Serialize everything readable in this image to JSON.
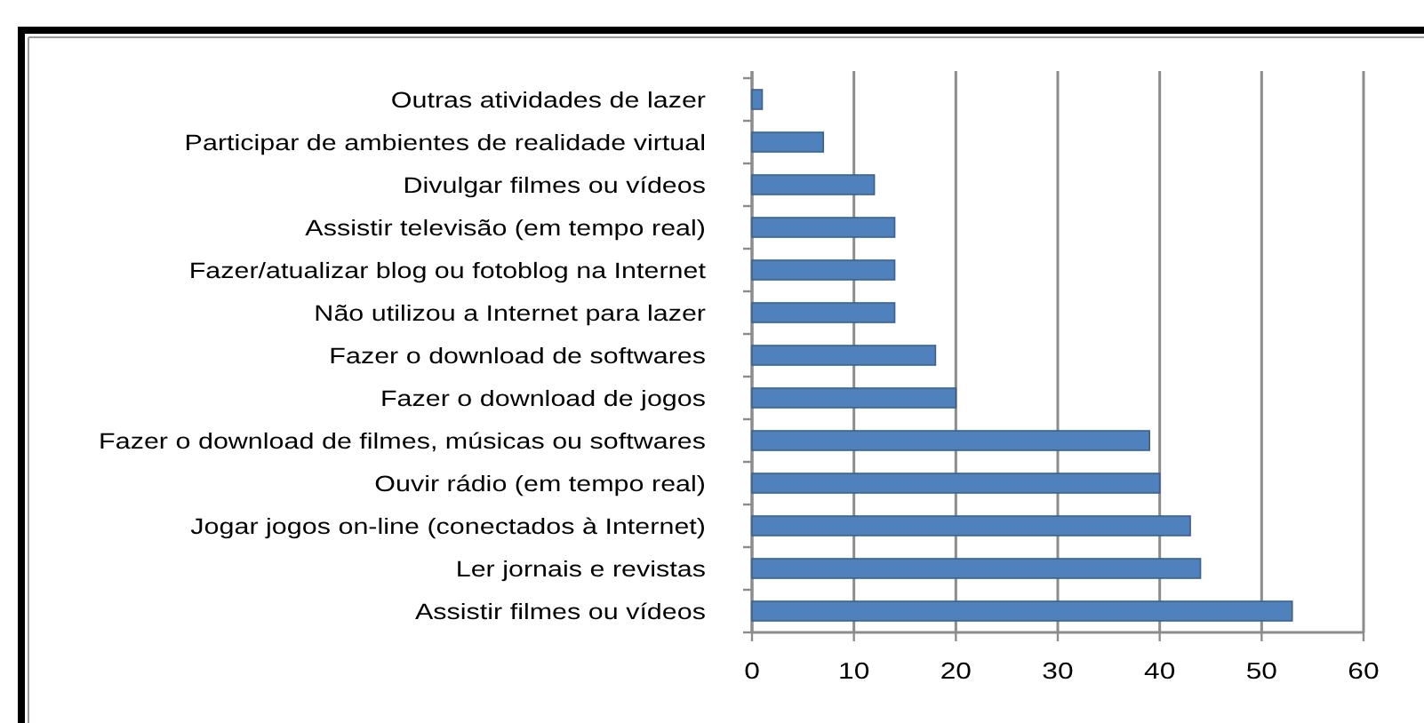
{
  "chart_data": {
    "type": "bar",
    "orientation": "horizontal",
    "categories": [
      "Outras atividades de lazer",
      "Participar de ambientes de realidade virtual",
      "Divulgar filmes ou vídeos",
      "Assistir televisão (em tempo real)",
      "Fazer/atualizar blog ou fotoblog na Internet",
      "Não utilizou a Internet para lazer",
      "Fazer o download de softwares",
      "Fazer o download de jogos",
      "Fazer o download de filmes, músicas ou softwares",
      "Ouvir rádio (em tempo real)",
      "Jogar jogos on-line (conectados à Internet)",
      "Ler jornais e revistas",
      "Assistir filmes ou vídeos"
    ],
    "values": [
      1,
      7,
      12,
      14,
      14,
      14,
      18,
      20,
      39,
      40,
      43,
      44,
      53
    ],
    "color": "#4f81bd",
    "xlim": [
      0,
      60
    ],
    "xticks": [
      0,
      10,
      20,
      30,
      40,
      50,
      60
    ],
    "grid": "x"
  }
}
